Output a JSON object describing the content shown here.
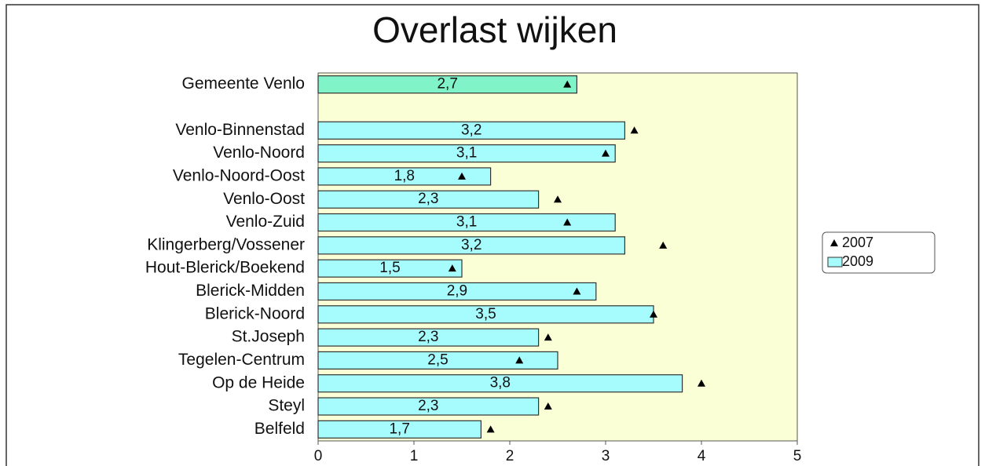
{
  "chart_data": {
    "type": "bar",
    "orientation": "horizontal",
    "title": "Overlast wijken",
    "categories": [
      "Gemeente Venlo",
      null,
      "Venlo-Binnenstad",
      "Venlo-Noord",
      "Venlo-Noord-Oost",
      "Venlo-Oost",
      "Venlo-Zuid",
      "Klingerberg/Vossener",
      "Hout-Blerick/Boekend",
      "Blerick-Midden",
      "Blerick-Noord",
      "St.Joseph",
      "Tegelen-Centrum",
      "Op de Heide",
      "Steyl",
      "Belfeld"
    ],
    "series": [
      {
        "name": "2007",
        "marker": "triangle",
        "color": "#000000",
        "values": [
          2.6,
          null,
          3.3,
          3.0,
          1.5,
          2.5,
          2.6,
          3.6,
          1.4,
          2.7,
          3.5,
          2.4,
          2.1,
          4.0,
          2.4,
          1.8
        ]
      },
      {
        "name": "2009",
        "marker": "bar",
        "color": "#a6fcfc",
        "colors": [
          "#80f4c8",
          null,
          "#a6fcfc",
          "#a6fcfc",
          "#a6fcfc",
          "#a6fcfc",
          "#a6fcfc",
          "#a6fcfc",
          "#a6fcfc",
          "#a6fcfc",
          "#a6fcfc",
          "#a6fcfc",
          "#a6fcfc",
          "#a6fcfc",
          "#a6fcfc",
          "#a6fcfc"
        ],
        "values": [
          2.7,
          null,
          3.2,
          3.1,
          1.8,
          2.3,
          3.1,
          3.2,
          1.5,
          2.9,
          3.5,
          2.3,
          2.5,
          3.8,
          2.3,
          1.7
        ],
        "value_labels": [
          "2,7",
          null,
          "3,2",
          "3,1",
          "1,8",
          "2,3",
          "3,1",
          "3,2",
          "1,5",
          "2,9",
          "3,5",
          "2,3",
          "2,5",
          "3,8",
          "2,3",
          "1,7"
        ]
      }
    ],
    "xlim": [
      0,
      5
    ],
    "xticks": [
      0,
      1,
      2,
      3,
      4,
      5
    ],
    "grid": false,
    "plot_background": "#fbffd6",
    "legend": "right"
  }
}
